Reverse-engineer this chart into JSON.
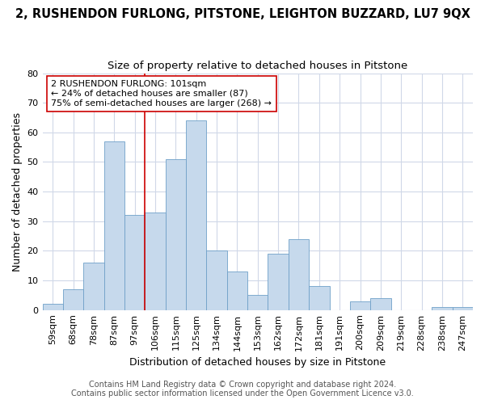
{
  "title_line1": "2, RUSHENDON FURLONG, PITSTONE, LEIGHTON BUZZARD, LU7 9QX",
  "title_line2": "Size of property relative to detached houses in Pitstone",
  "xlabel": "Distribution of detached houses by size in Pitstone",
  "ylabel": "Number of detached properties",
  "bar_labels": [
    "59sqm",
    "68sqm",
    "78sqm",
    "87sqm",
    "97sqm",
    "106sqm",
    "115sqm",
    "125sqm",
    "134sqm",
    "144sqm",
    "153sqm",
    "162sqm",
    "172sqm",
    "181sqm",
    "191sqm",
    "200sqm",
    "209sqm",
    "219sqm",
    "228sqm",
    "238sqm",
    "247sqm"
  ],
  "bar_values": [
    2,
    7,
    16,
    57,
    32,
    33,
    51,
    64,
    20,
    13,
    5,
    19,
    24,
    8,
    0,
    3,
    4,
    0,
    0,
    1,
    1
  ],
  "bar_color": "#c6d9ec",
  "bar_edge_color": "#6fa0c8",
  "vline_x": 4.5,
  "vline_color": "#cc0000",
  "annotation_text": "2 RUSHENDON FURLONG: 101sqm\n← 24% of detached houses are smaller (87)\n75% of semi-detached houses are larger (268) →",
  "annotation_box_color": "#ffffff",
  "annotation_box_edge": "#cc0000",
  "ylim": [
    0,
    80
  ],
  "yticks": [
    0,
    10,
    20,
    30,
    40,
    50,
    60,
    70,
    80
  ],
  "bg_color": "#ffffff",
  "grid_color": "#d0d8e8",
  "footer_line1": "Contains HM Land Registry data © Crown copyright and database right 2024.",
  "footer_line2": "Contains public sector information licensed under the Open Government Licence v3.0.",
  "title_fontsize": 10.5,
  "subtitle_fontsize": 9.5,
  "axis_label_fontsize": 9,
  "tick_fontsize": 8,
  "annotation_fontsize": 8,
  "footer_fontsize": 7
}
